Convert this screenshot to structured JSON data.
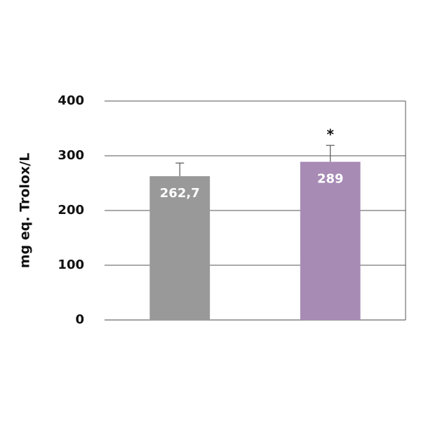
{
  "chart_data": {
    "type": "bar",
    "y_label": "mg eq. Trolox/L",
    "categories": [
      null,
      null
    ],
    "values": [
      262.7,
      289
    ],
    "value_labels": [
      "262,7",
      "289"
    ],
    "errors": [
      24,
      30
    ],
    "colors": [
      "#999999",
      "#a78bb5"
    ],
    "annotation": "*",
    "ylim": [
      0,
      400
    ],
    "yticks": [
      0,
      100,
      200,
      300,
      400
    ],
    "grid": true
  }
}
